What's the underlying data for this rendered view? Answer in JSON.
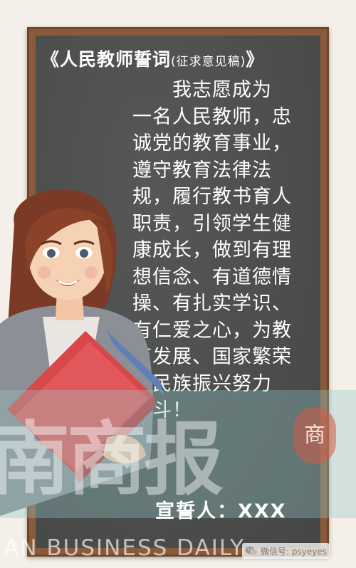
{
  "title": {
    "main": "《人民教师誓词",
    "sub": "(征求意见稿)",
    "close": "》"
  },
  "oath_text": "　　我志愿成为\n一名人民教师，忠\n诚党的教育事业，\n遵守教育法律法\n规，履行教书育人\n职责，引领学生健\n康成长，做到有理\n想信念、有道德情\n操、有扎实学识、\n有仁爱之心，为教\n育发展、国家繁荣\n和民族振兴努力\n奋斗！",
  "signer": "宣誓人：XXX",
  "watermark": {
    "chars": "南商报",
    "seal": "商",
    "english": "IAN BUSINESS DAILY"
  },
  "wechat_label": "微信号: psyeyes",
  "colors": {
    "board": "#4b4d4c",
    "frame": "#8a5b3a",
    "text": "#ffffff"
  }
}
